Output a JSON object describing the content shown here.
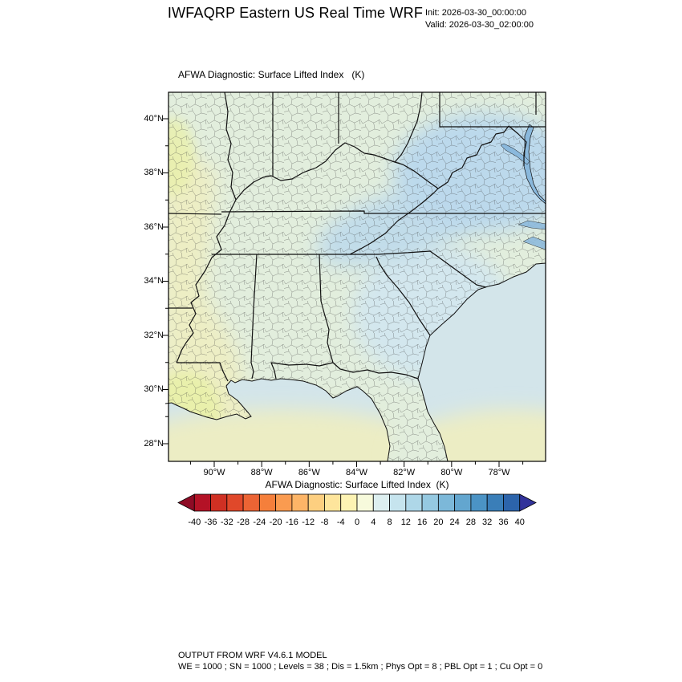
{
  "header": {
    "title": "IWFAQRP Eastern US Real Time WRF",
    "init_label": "Init: 2026-03-30_00:00:00",
    "valid_label": "Valid: 2026-03-30_02:00:00"
  },
  "map": {
    "subtitle": "AFWA Diagnostic: Surface Lifted Index   (K)",
    "lat_ticks": [
      "40°N",
      "38°N",
      "36°N",
      "34°N",
      "32°N",
      "30°N",
      "28°N"
    ],
    "lon_ticks": [
      "90°W",
      "88°W",
      "86°W",
      "84°W",
      "82°W",
      "80°W",
      "78°W"
    ],
    "colors": {
      "land_base": "#e2eedd",
      "land_yellow": "#edeec4",
      "land_yellow_bright": "#e9f0ab",
      "land_blue_band": "#bcd9ec",
      "land_blue_soft": "#d3e7ee",
      "ocean_atlantic": "#d3e5ea",
      "ocean_gulf_yellow": "#ecedc4",
      "bay_water": "#8ab8dc"
    }
  },
  "colorbar": {
    "title": "AFWA Diagnostic: Surface Lifted Index  (K)",
    "labels": [
      "-40",
      "-36",
      "-32",
      "-28",
      "-24",
      "-20",
      "-16",
      "-12",
      "-8",
      "-4",
      "0",
      "4",
      "8",
      "12",
      "16",
      "20",
      "24",
      "28",
      "32",
      "36",
      "40"
    ],
    "colors": [
      "#8e0b25",
      "#b41226",
      "#d03023",
      "#e0482a",
      "#ec6434",
      "#f57f3b",
      "#fa9b50",
      "#fdb567",
      "#fdcf80",
      "#fee59c",
      "#fdf3b3",
      "#f7fadc",
      "#ddeff0",
      "#c6e4ee",
      "#aed7e8",
      "#95c9e1",
      "#7cb8d9",
      "#63a6cf",
      "#4b93c5",
      "#3a7eb8",
      "#2c64ab",
      "#32339b"
    ]
  },
  "footer": {
    "line1": "OUTPUT FROM WRF V4.6.1 MODEL",
    "line2": "WE = 1000 ; SN = 1000 ; Levels = 38 ; Dis = 1.5km ; Phys Opt = 8 ; PBL Opt = 1 ; Cu Opt = 0"
  }
}
